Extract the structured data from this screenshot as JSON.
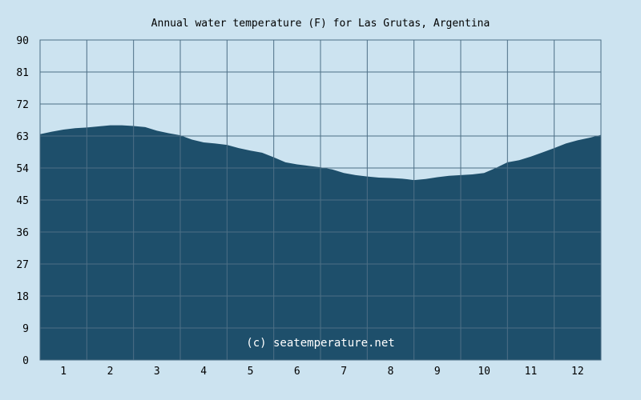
{
  "chart_data": {
    "type": "area",
    "title": "Annual water temperature (F) for Las Grutas, Argentina",
    "watermark": "(c) seatemperature.net",
    "xlabel": "",
    "ylabel": "",
    "ylim": [
      0,
      90
    ],
    "xlim": [
      0.5,
      12.5
    ],
    "yticks": [
      "0",
      "9",
      "18",
      "27",
      "36",
      "45",
      "54",
      "63",
      "72",
      "81",
      "90"
    ],
    "xticks": [
      "1",
      "2",
      "3",
      "4",
      "5",
      "6",
      "7",
      "8",
      "9",
      "10",
      "11",
      "12"
    ],
    "grid": true,
    "colors": {
      "background": "#cce3f0",
      "fill": "#1e4f6b",
      "grid": "#4d6f86",
      "text": "#000000",
      "watermark": "#ffffff"
    },
    "series": [
      {
        "x": [
          0.5,
          0.75,
          1.0,
          1.25,
          1.5,
          1.75,
          2.0,
          2.25,
          2.5,
          2.75,
          3.0,
          3.25,
          3.5,
          3.75,
          4.0,
          4.25,
          4.5,
          4.75,
          5.0,
          5.25,
          5.5,
          5.75,
          6.0,
          6.25,
          6.5,
          6.75,
          7.0,
          7.25,
          7.5,
          7.75,
          8.0,
          8.25,
          8.5,
          8.75,
          9.0,
          9.25,
          9.5,
          9.75,
          10.0,
          10.25,
          10.5,
          10.75,
          11.0,
          11.25,
          11.5,
          11.75,
          12.0,
          12.25,
          12.5
        ],
        "values": [
          63.5,
          64.2,
          64.8,
          65.2,
          65.4,
          65.7,
          66.0,
          66.0,
          65.8,
          65.5,
          64.5,
          63.8,
          63.2,
          62.0,
          61.2,
          60.9,
          60.5,
          59.6,
          58.9,
          58.3,
          57.0,
          55.6,
          55.0,
          54.6,
          54.2,
          53.6,
          52.6,
          52.0,
          51.6,
          51.3,
          51.2,
          51.0,
          50.6,
          50.9,
          51.4,
          51.8,
          52.0,
          52.2,
          52.6,
          54.0,
          55.6,
          56.2,
          57.2,
          58.4,
          59.6,
          60.9,
          61.8,
          62.5,
          63.3
        ]
      }
    ]
  }
}
